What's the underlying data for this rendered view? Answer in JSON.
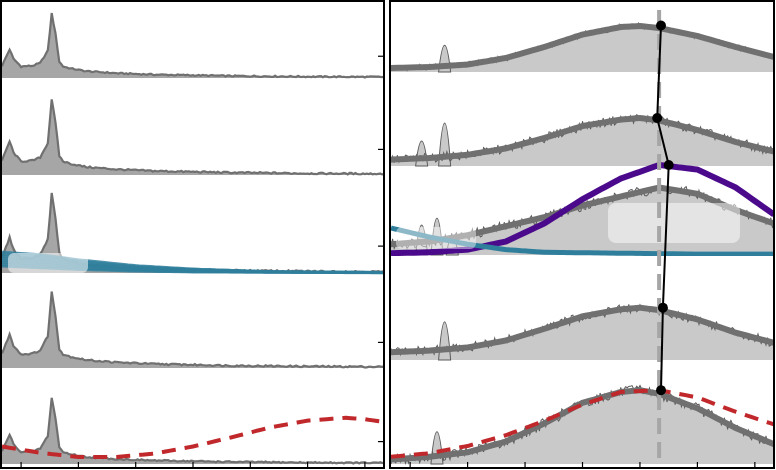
{
  "chart_data": [
    {
      "type": "area",
      "panel": "left",
      "title": "",
      "xlabel": "",
      "ylabel": "",
      "xlim": [
        0,
        100
      ],
      "ylim": [
        0,
        1
      ],
      "x_ticks": [
        5,
        20,
        35,
        50,
        65,
        80,
        95
      ],
      "y_ticks_per_row": [
        0.32
      ],
      "grid": false,
      "rows": [
        {
          "row": 1,
          "spectrum": {
            "x": [
              0,
              1,
              2,
              3,
              5,
              8,
              10,
              12,
              13,
              14,
              15,
              16,
              18,
              22,
              30,
              40,
              60,
              80,
              100
            ],
            "y": [
              0.18,
              0.3,
              0.42,
              0.28,
              0.17,
              0.18,
              0.22,
              0.4,
              0.95,
              0.65,
              0.24,
              0.17,
              0.14,
              0.1,
              0.07,
              0.05,
              0.03,
              0.02,
              0.015
            ]
          },
          "overlays": []
        },
        {
          "row": 2,
          "spectrum": {
            "x": [
              0,
              1,
              2,
              3,
              5,
              8,
              10,
              12,
              13,
              14,
              15,
              16,
              18,
              22,
              30,
              40,
              60,
              80,
              100
            ],
            "y": [
              0.18,
              0.3,
              0.42,
              0.28,
              0.17,
              0.18,
              0.22,
              0.4,
              0.95,
              0.65,
              0.24,
              0.17,
              0.14,
              0.1,
              0.07,
              0.05,
              0.03,
              0.02,
              0.015
            ]
          },
          "overlays": []
        },
        {
          "row": 3,
          "spectrum": {
            "x": [
              0,
              1,
              2,
              3,
              5,
              8,
              10,
              12,
              13,
              14,
              15,
              16,
              18,
              22,
              30,
              40,
              60,
              80,
              100
            ],
            "y": [
              0.18,
              0.3,
              0.42,
              0.28,
              0.17,
              0.18,
              0.22,
              0.4,
              0.95,
              0.65,
              0.24,
              0.17,
              0.14,
              0.1,
              0.07,
              0.05,
              0.03,
              0.02,
              0.015
            ]
          },
          "overlays": [
            {
              "style": "teal-fan",
              "color": "#2f7f9c",
              "x": [
                0,
                10,
                20,
                35,
                50,
                70,
                100
              ],
              "y_top": [
                0.25,
                0.22,
                0.16,
                0.09,
                0.05,
                0.02,
                0.01
              ],
              "y_bottom": [
                0.08,
                0.06,
                0.04,
                0.02,
                0.01,
                0.005,
                0.0
              ]
            }
          ]
        },
        {
          "row": 4,
          "spectrum": {
            "x": [
              0,
              1,
              2,
              3,
              5,
              8,
              10,
              12,
              13,
              14,
              15,
              16,
              18,
              22,
              30,
              40,
              60,
              80,
              100
            ],
            "y": [
              0.18,
              0.3,
              0.42,
              0.28,
              0.17,
              0.18,
              0.22,
              0.4,
              0.95,
              0.65,
              0.24,
              0.17,
              0.14,
              0.1,
              0.07,
              0.05,
              0.03,
              0.02,
              0.015
            ]
          },
          "overlays": []
        },
        {
          "row": 5,
          "spectrum": {
            "x": [
              0,
              1,
              2,
              3,
              5,
              8,
              10,
              12,
              13,
              14,
              15,
              16,
              18,
              22,
              30,
              40,
              60,
              80,
              100
            ],
            "y": [
              0.18,
              0.3,
              0.42,
              0.28,
              0.17,
              0.18,
              0.22,
              0.4,
              0.95,
              0.65,
              0.24,
              0.17,
              0.14,
              0.1,
              0.07,
              0.05,
              0.03,
              0.02,
              0.015
            ]
          },
          "overlays": [
            {
              "style": "dashed",
              "color": "#c0282b",
              "x": [
                0,
                10,
                20,
                30,
                40,
                50,
                60,
                70,
                80,
                90,
                95,
                100
              ],
              "y": [
                0.25,
                0.16,
                0.1,
                0.1,
                0.15,
                0.25,
                0.38,
                0.52,
                0.62,
                0.66,
                0.64,
                0.6
              ]
            }
          ]
        }
      ]
    },
    {
      "type": "area",
      "panel": "right",
      "title": "",
      "xlabel": "",
      "ylabel": "",
      "xlim": [
        0,
        100
      ],
      "ylim": [
        0,
        1
      ],
      "x_ticks": [
        5,
        20,
        35,
        50,
        65,
        80,
        95
      ],
      "grid": false,
      "rows": [
        {
          "row": 1,
          "envelope": {
            "x": [
              0,
              10,
              20,
              30,
              40,
              50,
              60,
              65,
              70,
              80,
              90,
              100
            ],
            "y": [
              0.08,
              0.1,
              0.15,
              0.28,
              0.5,
              0.75,
              0.9,
              0.92,
              0.88,
              0.72,
              0.5,
              0.3
            ]
          },
          "spikes": [
            {
              "x": 14,
              "y": 0.95
            }
          ],
          "marker": {
            "x": 70.5,
            "y": 0.93
          }
        },
        {
          "row": 2,
          "envelope": {
            "x": [
              0,
              10,
              20,
              30,
              40,
              50,
              60,
              65,
              70,
              80,
              90,
              100
            ],
            "y": [
              0.08,
              0.1,
              0.14,
              0.22,
              0.35,
              0.5,
              0.58,
              0.6,
              0.57,
              0.45,
              0.3,
              0.18
            ]
          },
          "spikes": [
            {
              "x": 8,
              "y": 0.55
            },
            {
              "x": 14,
              "y": 1.0
            }
          ],
          "marker": {
            "x": 69.5,
            "y": 0.6
          }
        },
        {
          "row": 3,
          "envelope": {
            "x": [
              0,
              10,
              20,
              30,
              40,
              50,
              60,
              65,
              70,
              80,
              90,
              100
            ],
            "y": [
              0.12,
              0.15,
              0.22,
              0.32,
              0.42,
              0.55,
              0.65,
              0.7,
              0.75,
              0.68,
              0.5,
              0.35
            ]
          },
          "spikes": [
            {
              "x": 8,
              "y": 0.6
            },
            {
              "x": 12,
              "y": 0.75
            },
            {
              "x": 16,
              "y": 0.35
            }
          ],
          "marker": {
            "x": 72.5,
            "y": 1.0
          },
          "overlays": [
            {
              "style": "curve",
              "color": "#4b0a8c",
              "x": [
                0,
                10,
                20,
                30,
                40,
                50,
                60,
                70,
                80,
                90,
                100
              ],
              "y": [
                0.02,
                0.03,
                0.06,
                0.15,
                0.35,
                0.62,
                0.85,
                1.0,
                0.95,
                0.75,
                0.45
              ]
            },
            {
              "style": "curve",
              "color": "#2f7f9c",
              "x": [
                0,
                10,
                20,
                30,
                40,
                60,
                80,
                100
              ],
              "y": [
                0.3,
                0.2,
                0.12,
                0.06,
                0.03,
                0.02,
                0.01,
                0.01
              ]
            }
          ]
        },
        {
          "row": 4,
          "envelope": {
            "x": [
              0,
              10,
              20,
              30,
              40,
              50,
              60,
              65,
              70,
              80,
              90,
              100
            ],
            "y": [
              0.1,
              0.12,
              0.16,
              0.25,
              0.4,
              0.56,
              0.65,
              0.67,
              0.64,
              0.52,
              0.35,
              0.22
            ]
          },
          "spikes": [
            {
              "x": 14,
              "y": 0.9
            }
          ],
          "marker": {
            "x": 71.0,
            "y": 0.67
          }
        },
        {
          "row": 5,
          "envelope": {
            "x": [
              0,
              10,
              20,
              30,
              40,
              50,
              60,
              65,
              70,
              80,
              90,
              100
            ],
            "y": [
              0.05,
              0.08,
              0.13,
              0.25,
              0.45,
              0.68,
              0.8,
              0.82,
              0.78,
              0.62,
              0.4,
              0.22
            ]
          },
          "spikes": [
            {
              "x": 12,
              "y": 0.65
            }
          ],
          "marker": {
            "x": 70.5,
            "y": 0.82
          },
          "overlays": [
            {
              "style": "dashed",
              "color": "#c0282b",
              "x": [
                0,
                10,
                20,
                30,
                40,
                50,
                60,
                70,
                80,
                90,
                100
              ],
              "y": [
                0.08,
                0.12,
                0.2,
                0.32,
                0.48,
                0.66,
                0.8,
                0.82,
                0.74,
                0.58,
                0.44
              ]
            }
          ]
        }
      ],
      "vertical_dashed_line": {
        "x": 70.0,
        "color": "#a6a6a6"
      },
      "marker_path_color": "#000000"
    }
  ],
  "colors": {
    "left_fill": "#a6a6a6",
    "right_fill": "#c9c9c9",
    "envelope": "#707070",
    "spectrum_line": "#5a5a5a",
    "teal": "#2f7f9c",
    "purple": "#4b0a8c",
    "red_dashed": "#c0282b",
    "highlight_box": "#ffffff"
  }
}
